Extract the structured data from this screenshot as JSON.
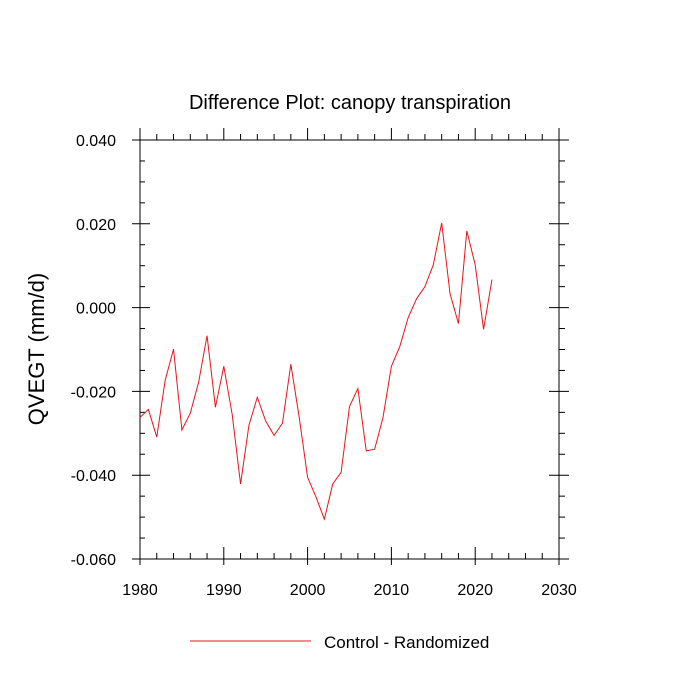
{
  "chart_data": {
    "type": "line",
    "title": "Difference Plot: canopy transpiration",
    "xlabel": "",
    "ylabel": "QVEGT  (mm/d)",
    "xlim": [
      1980,
      2030
    ],
    "ylim": [
      -0.06,
      0.04
    ],
    "x_ticks": [
      1980,
      1990,
      2000,
      2010,
      2020,
      2030
    ],
    "x_tick_labels": [
      "1980",
      "1990",
      "2000",
      "2010",
      "2020",
      "2030"
    ],
    "y_ticks": [
      -0.06,
      -0.04,
      -0.02,
      0.0,
      0.02,
      0.04
    ],
    "y_tick_labels": [
      "-0.060",
      "-0.040",
      "-0.020",
      "0.000",
      "0.020",
      "0.040"
    ],
    "legend_position": "bottom-center",
    "grid": false,
    "series": [
      {
        "name": "Control - Randomized",
        "color": "#e8141c",
        "x": [
          1980,
          1981,
          1982,
          1983,
          1984,
          1985,
          1986,
          1987,
          1988,
          1989,
          1990,
          1991,
          1992,
          1993,
          1994,
          1995,
          1996,
          1997,
          1998,
          1999,
          2000,
          2001,
          2002,
          2003,
          2004,
          2005,
          2006,
          2007,
          2008,
          2009,
          2010,
          2011,
          2012,
          2013,
          2014,
          2015,
          2016,
          2017,
          2018,
          2019,
          2020,
          2021,
          2022
        ],
        "y": [
          -0.0262,
          -0.0243,
          -0.0309,
          -0.0174,
          -0.0099,
          -0.0292,
          -0.0252,
          -0.0178,
          -0.0067,
          -0.0238,
          -0.014,
          -0.0255,
          -0.0421,
          -0.0281,
          -0.0214,
          -0.0271,
          -0.0305,
          -0.0276,
          -0.0135,
          -0.0262,
          -0.0405,
          -0.0452,
          -0.0505,
          -0.0421,
          -0.0393,
          -0.0236,
          -0.0193,
          -0.0342,
          -0.0338,
          -0.0262,
          -0.014,
          -0.0093,
          -0.0024,
          0.0021,
          0.005,
          0.0102,
          0.0202,
          0.0033,
          -0.0038,
          0.0183,
          0.0102,
          -0.0052,
          0.0067
        ]
      }
    ]
  }
}
